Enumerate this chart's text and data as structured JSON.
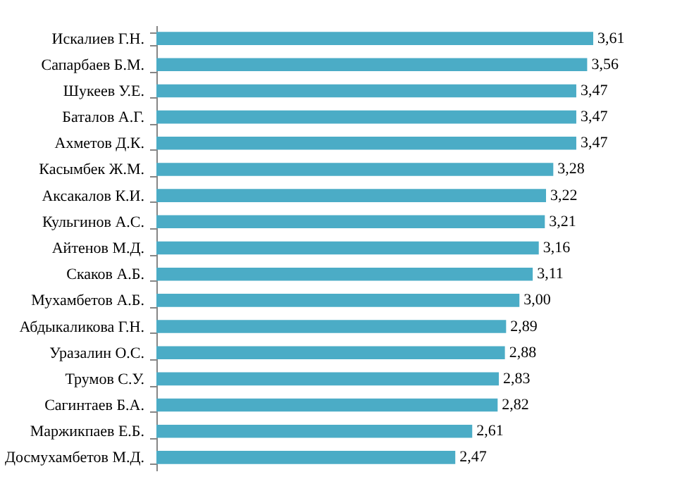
{
  "chart_data": {
    "type": "bar",
    "orientation": "horizontal",
    "categories": [
      "Искалиев  Г.Н.",
      "Сапарбаев  Б.М.",
      "Шукеев У.Е.",
      "Баталов А.Г.",
      "Ахметов Д.К.",
      "Касымбек Ж.М.",
      "Аксакалов К.И.",
      "Кульгинов А.С.",
      "Айтенов М.Д.",
      "Скаков А.Б.",
      "Мухамбетов А.Б.",
      "Абдыкаликова  Г.Н.",
      "Уразалин  О.С.",
      "Трумов С.У.",
      "Сагинтаев Б.А.",
      "Маржикпаев  Е.Б.",
      "Досмухамбетов М.Д."
    ],
    "values": [
      3.61,
      3.56,
      3.47,
      3.47,
      3.47,
      3.28,
      3.22,
      3.21,
      3.16,
      3.11,
      3.0,
      2.89,
      2.88,
      2.83,
      2.82,
      2.61,
      2.47
    ],
    "value_labels": [
      "3,61",
      "3,56",
      "3,47",
      "3,47",
      "3,47",
      "3,28",
      "3,22",
      "3,21",
      "3,16",
      "3,11",
      "3,00",
      "2,89",
      "2,88",
      "2,83",
      "2,82",
      "2,61",
      "2,47"
    ],
    "color": "#4bacc6",
    "tick_labels": "y"
  }
}
